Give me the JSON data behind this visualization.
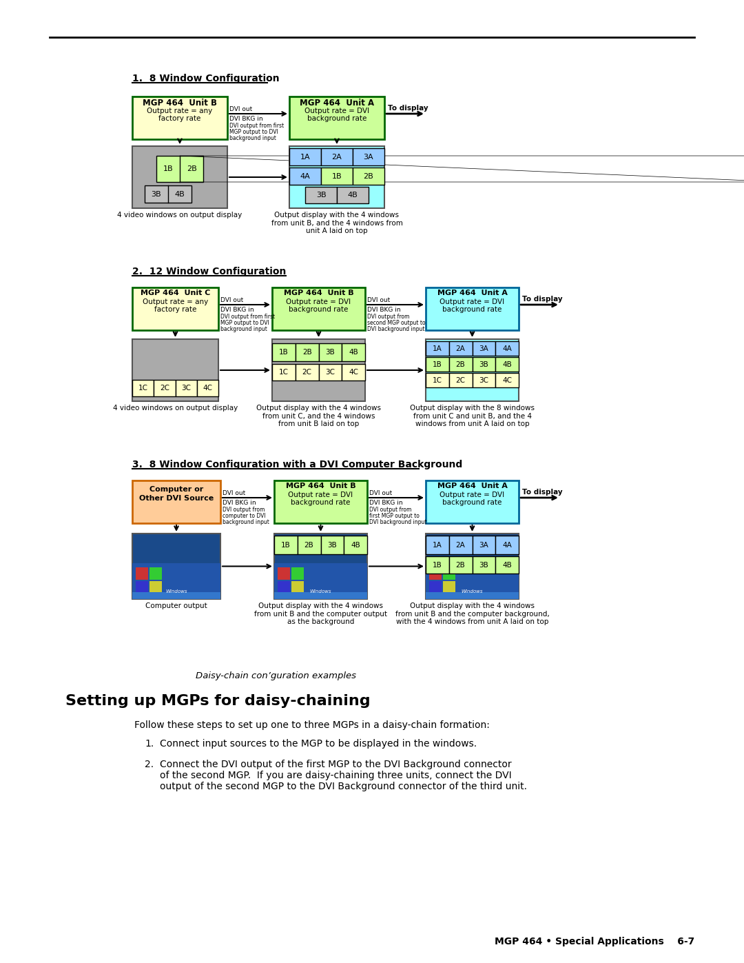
{
  "page_bg": "#ffffff",
  "title_line": "MGP 464 • Special Applications    6-7",
  "section_heading": "Setting up MGPs for daisy-chaining",
  "caption": "Daisy-chain con’guration examples",
  "body_intro": "Follow these steps to set up one to three MGPs in a daisy-chain formation:",
  "body_item1": "Connect input sources to the MGP to be displayed in the windows.",
  "body_item2a": "Connect the DVI output of the first MGP to the DVI Background connector",
  "body_item2b": "of the second MGP.  If you are daisy-chaining three units, connect the DVI",
  "body_item2c": "output of the second MGP to the DVI Background connector of the third unit.",
  "config1_title": "1.  8 Window Configuration",
  "config2_title": "2.  12 Window Configuration",
  "config3_title": "3.  8 Window Configuration with a DVI Computer Background",
  "color_green_box": "#ccff99",
  "color_green_border": "#006600",
  "color_yellow_box": "#ffffcc",
  "color_yellow_border": "#006600",
  "color_blue_box": "#99ccff",
  "color_blue_border": "#3366cc",
  "color_teal_box": "#99ffff",
  "color_teal_border": "#006699",
  "color_orange_box": "#ffcc99",
  "color_orange_border": "#cc6600",
  "color_gray_bg": "#aaaaaa",
  "color_light_green": "#ccff99",
  "color_light_blue": "#99ccff",
  "color_light_yellow": "#ffffcc",
  "color_light_teal": "#99ffff"
}
